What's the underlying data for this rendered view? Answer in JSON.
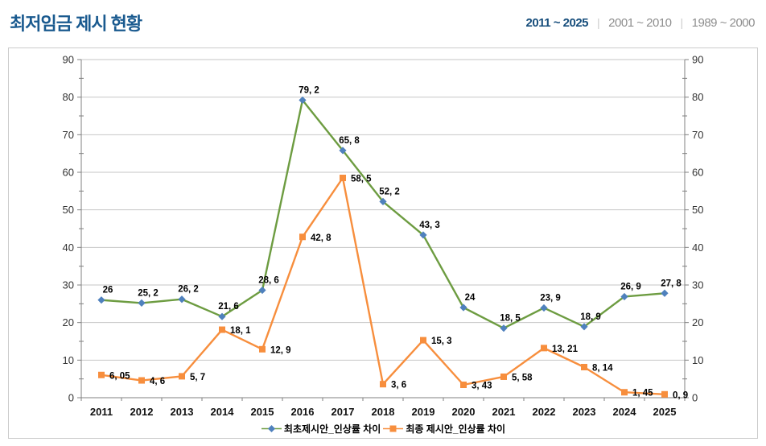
{
  "header": {
    "title": "최저임금 제시 현황",
    "tab_separator": "|",
    "tabs": [
      {
        "label": "2011 ~ 2025",
        "active": true
      },
      {
        "label": "2001 ~ 2010",
        "active": false
      },
      {
        "label": "1989 ~ 2000",
        "active": false
      }
    ]
  },
  "colors": {
    "title": "#1A5A8F",
    "active_tab": "#174E7C",
    "inactive_tab": "#8E8E8E",
    "box_border": "#CCCCCC",
    "grid": "#C6C6C6",
    "axis": "#808080",
    "series1_line": "#6D9C41",
    "series1_marker": "#4F81BD",
    "series2_line": "#F78E3D",
    "series2_marker": "#F78E3D"
  },
  "chart_data": {
    "type": "line",
    "title": "최저임금 제시 현황",
    "categories": [
      "2011",
      "2012",
      "2013",
      "2014",
      "2015",
      "2016",
      "2017",
      "2018",
      "2019",
      "2020",
      "2021",
      "2022",
      "2023",
      "2024",
      "2025"
    ],
    "series": [
      {
        "name": "최초제시안_인상률 차이",
        "marker": "diamond",
        "line_color": "#6D9C41",
        "marker_color": "#4F81BD",
        "values": [
          26,
          25.2,
          26.2,
          21.6,
          28.6,
          79.2,
          65.8,
          52.2,
          43.3,
          24,
          18.5,
          23.9,
          18.9,
          26.9,
          27.8
        ],
        "labels": [
          "26",
          "25, 2",
          "26, 2",
          "21, 6",
          "28, 6",
          "79, 2",
          "65, 8",
          "52, 2",
          "43, 3",
          "24",
          "18, 5",
          "23, 9",
          "18, 9",
          "26, 9",
          "27, 8"
        ]
      },
      {
        "name": "최종 제시안_인상률 차이",
        "marker": "square",
        "line_color": "#F78E3D",
        "marker_color": "#F78E3D",
        "values": [
          6.05,
          4.6,
          5.7,
          18.1,
          12.9,
          42.8,
          58.5,
          3.6,
          15.3,
          3.43,
          5.58,
          13.21,
          8.14,
          1.45,
          0.9
        ],
        "labels": [
          "6, 05",
          "4, 6",
          "5, 7",
          "18, 1",
          "12, 9",
          "42, 8",
          "58, 5",
          "3, 6",
          "15, 3",
          "3, 43",
          "5, 58",
          "13, 21",
          "8, 14",
          "1, 45",
          "0, 9"
        ]
      }
    ],
    "ylim": [
      0,
      90
    ],
    "ytick_step": 10,
    "yticks": [
      "0",
      "10",
      "20",
      "30",
      "40",
      "50",
      "60",
      "70",
      "80",
      "90"
    ],
    "grid": true,
    "dual_y_axis": true,
    "legend_position": "bottom"
  }
}
